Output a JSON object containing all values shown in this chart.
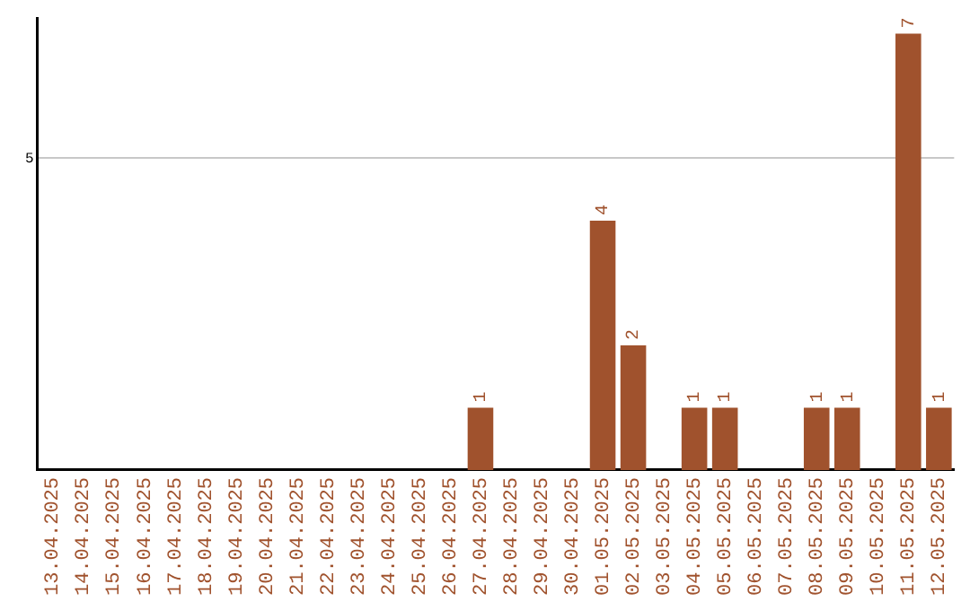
{
  "chart_data": {
    "type": "bar",
    "categories": [
      "13.04.2025",
      "14.04.2025",
      "15.04.2025",
      "16.04.2025",
      "17.04.2025",
      "18.04.2025",
      "19.04.2025",
      "20.04.2025",
      "21.04.2025",
      "22.04.2025",
      "23.04.2025",
      "24.04.2025",
      "25.04.2025",
      "26.04.2025",
      "27.04.2025",
      "28.04.2025",
      "29.04.2025",
      "30.04.2025",
      "01.05.2025",
      "02.05.2025",
      "03.05.2025",
      "04.05.2025",
      "05.05.2025",
      "06.05.2025",
      "07.05.2025",
      "08.05.2025",
      "09.05.2025",
      "10.05.2025",
      "11.05.2025",
      "12.05.2025"
    ],
    "values": [
      null,
      null,
      null,
      null,
      null,
      null,
      null,
      null,
      null,
      null,
      null,
      null,
      null,
      null,
      1,
      null,
      null,
      null,
      4,
      2,
      null,
      1,
      1,
      null,
      null,
      1,
      1,
      null,
      7,
      1
    ],
    "color": "#a0522d",
    "ylim": [
      0,
      7.25
    ],
    "yticks": [
      5
    ],
    "grid": "y",
    "data_labels": true,
    "legend": false
  }
}
